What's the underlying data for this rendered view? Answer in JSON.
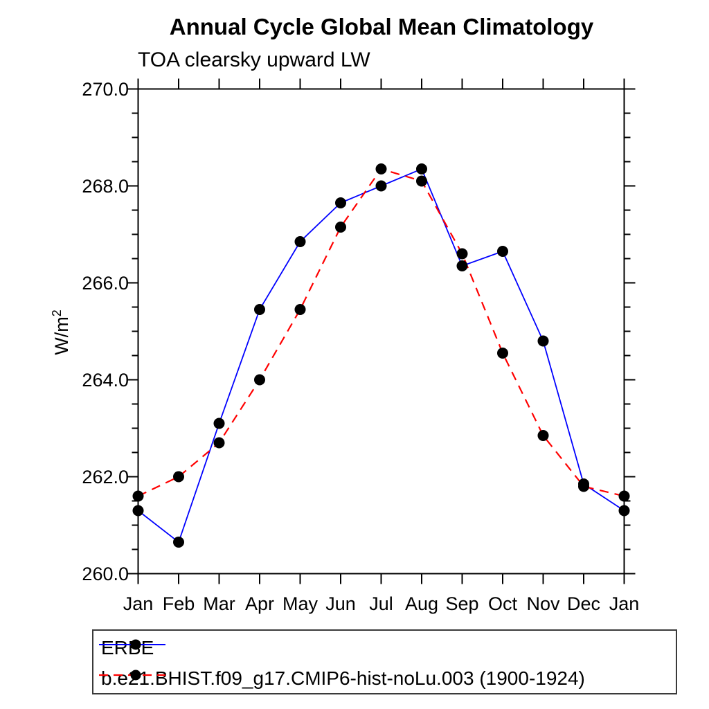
{
  "title": "Annual Cycle Global Mean Climatology",
  "subtitle": "TOA clearsky upward LW",
  "y_axis_label": "W/m",
  "y_axis_label_exponent": "2",
  "chart_data": {
    "type": "line",
    "title": "Annual Cycle Global Mean Climatology",
    "subtitle": "TOA clearsky upward LW",
    "ylabel": "W/m^2",
    "x_labels": [
      "Jan",
      "Feb",
      "Mar",
      "Apr",
      "May",
      "Jun",
      "Jul",
      "Aug",
      "Sep",
      "Oct",
      "Nov",
      "Dec",
      "Jan"
    ],
    "ylim": [
      260.0,
      270.0
    ],
    "y_major_tick_values": [
      260.0,
      262.0,
      264.0,
      266.0,
      268.0,
      270.0
    ],
    "y_tick_labels": [
      "260.0",
      "262.0",
      "264.0",
      "266.0",
      "268.0",
      "270.0"
    ],
    "y_minor_step": 0.5,
    "grid": "off",
    "legend_position": "bottom-left",
    "marker_color": "#000000",
    "axis_color": "#000000",
    "series": [
      {
        "name": "ERBE",
        "color": "#0000ff",
        "line_style": "solid",
        "marker": "filled-circle",
        "marker_color": "#000000",
        "values": [
          261.3,
          260.65,
          263.1,
          265.45,
          266.85,
          267.65,
          268.0,
          268.35,
          266.35,
          266.65,
          264.8,
          261.85,
          261.3
        ]
      },
      {
        "name": "b.e21.BHIST.f09_g17.CMIP6-hist-noLu.003 (1900-1924)",
        "color": "#ff0000",
        "line_style": "dashed",
        "marker": "filled-circle",
        "marker_color": "#000000",
        "values": [
          261.6,
          262.0,
          262.7,
          264.0,
          265.45,
          267.15,
          268.35,
          268.1,
          266.6,
          264.55,
          262.85,
          261.8,
          261.6
        ]
      }
    ]
  }
}
